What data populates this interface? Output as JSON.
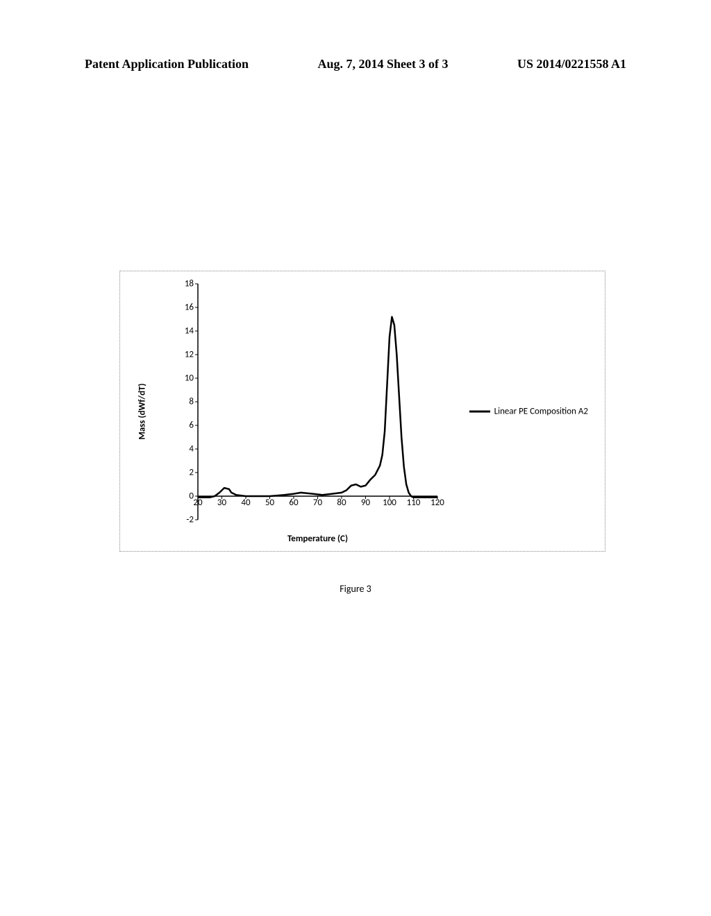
{
  "header": {
    "left": "Patent Application Publication",
    "mid": "Aug. 7, 2014  Sheet 3 of 3",
    "right": "US 2014/0221558 A1"
  },
  "chart": {
    "type": "line",
    "ylabel": "Mass (dWf/dT)",
    "xlabel": "Temperature (C)",
    "ylim_min": -2,
    "ylim_max": 18,
    "xlim_min": 20,
    "xlim_max": 120,
    "xtick_step": 10,
    "ytick_step": 2,
    "yticks": [
      -2,
      0,
      2,
      4,
      6,
      8,
      10,
      12,
      14,
      16,
      18
    ],
    "xticks": [
      20,
      30,
      40,
      50,
      60,
      70,
      80,
      90,
      100,
      110,
      120
    ],
    "line_color": "#000000",
    "line_width": 2.5,
    "axis_color": "#000000",
    "background_color": "#ffffff",
    "border_style": "dotted",
    "tick_fontsize": 13,
    "label_fontsize": 13,
    "label_fontweight": "bold",
    "series": [
      {
        "x": [
          20,
          22,
          25,
          27,
          29,
          31,
          33,
          34,
          36,
          40,
          50,
          56,
          60,
          63,
          68,
          72,
          76,
          80,
          82,
          84,
          86,
          88,
          90,
          92,
          94,
          96,
          97,
          98,
          99,
          100,
          101,
          102,
          103,
          104,
          105,
          106,
          107,
          108,
          109,
          110,
          111,
          112,
          114,
          116,
          118,
          120
        ],
        "y": [
          -0.1,
          -0.1,
          -0.1,
          0.0,
          0.3,
          0.7,
          0.6,
          0.3,
          0.1,
          0.0,
          0.0,
          0.1,
          0.2,
          0.3,
          0.2,
          0.1,
          0.2,
          0.3,
          0.5,
          0.9,
          1.0,
          0.8,
          0.9,
          1.4,
          1.8,
          2.6,
          3.5,
          5.5,
          9.5,
          13.5,
          15.2,
          14.5,
          12.0,
          8.5,
          5.0,
          2.5,
          1.0,
          0.3,
          0.0,
          -0.1,
          -0.1,
          -0.1,
          -0.1,
          -0.1,
          -0.1,
          -0.1
        ]
      }
    ],
    "legend_label": "Linear PE Composition A2",
    "legend_swatch_color": "#000000"
  },
  "caption": "Figure 3"
}
